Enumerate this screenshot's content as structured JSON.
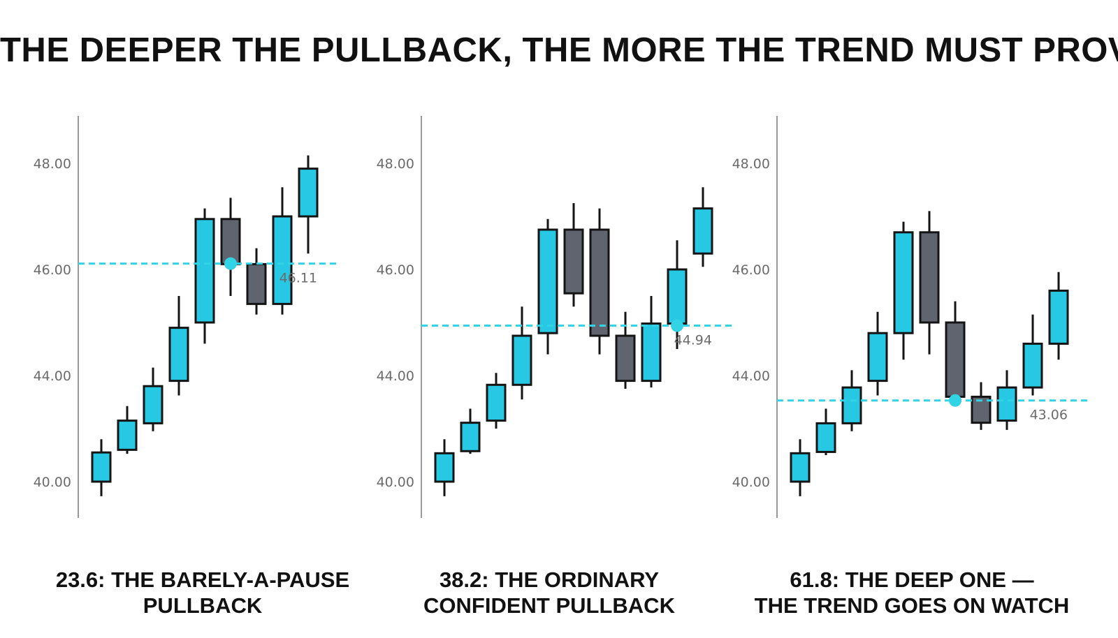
{
  "title": "THE DEEPER THE PULLBACK, THE MORE THE TREND MUST PROVE",
  "colors": {
    "up": "#27c8e4",
    "down": "#60646f",
    "outline": "#141414",
    "level": "#33d3e6",
    "axis": "#7a7a7a"
  },
  "chart_data": [
    {
      "type": "candlestick",
      "yticks": [
        "40.00",
        "44.00",
        "46.00",
        "48.00"
      ],
      "level_label": "46.11",
      "level": 46.11,
      "caption": [
        "23.6: THE BARELY-A-PAUSE",
        "PULLBACK"
      ],
      "candles": [
        {
          "o": 40.0,
          "c": 41.1,
          "h": 41.6,
          "l": 39.45
        },
        {
          "o": 41.2,
          "c": 42.3,
          "h": 42.85,
          "l": 41.05
        },
        {
          "o": 42.2,
          "c": 43.6,
          "h": 44.15,
          "l": 41.9
        },
        {
          "o": 43.8,
          "c": 44.9,
          "h": 45.5,
          "l": 43.25
        },
        {
          "o": 45.0,
          "c": 46.95,
          "h": 47.15,
          "l": 44.6
        },
        {
          "o": 46.95,
          "c": 46.1,
          "h": 47.35,
          "l": 45.5
        },
        {
          "o": 46.1,
          "c": 45.35,
          "h": 46.4,
          "l": 45.15
        },
        {
          "o": 45.35,
          "c": 47.0,
          "h": 47.55,
          "l": 45.15
        },
        {
          "o": 47.0,
          "c": 47.9,
          "h": 48.15,
          "l": 46.3
        }
      ]
    },
    {
      "type": "candlestick",
      "yticks": [
        "40.00",
        "44.00",
        "46.00",
        "48.00"
      ],
      "level_label": "44.94",
      "level": 44.94,
      "caption": [
        "38.2: THE ORDINARY",
        "CONFIDENT PULLBACK"
      ],
      "candles": [
        {
          "o": 40.0,
          "c": 41.07,
          "h": 41.6,
          "l": 39.45
        },
        {
          "o": 41.15,
          "c": 42.22,
          "h": 42.75,
          "l": 41.05
        },
        {
          "o": 42.3,
          "c": 43.65,
          "h": 44.05,
          "l": 42.0
        },
        {
          "o": 43.65,
          "c": 44.75,
          "h": 45.3,
          "l": 43.1
        },
        {
          "o": 44.8,
          "c": 46.75,
          "h": 46.95,
          "l": 44.4
        },
        {
          "o": 46.75,
          "c": 45.55,
          "h": 47.25,
          "l": 45.3
        },
        {
          "o": 46.75,
          "c": 44.75,
          "h": 47.15,
          "l": 44.4
        },
        {
          "o": 44.75,
          "c": 43.8,
          "h": 45.2,
          "l": 43.5
        },
        {
          "o": 43.8,
          "c": 44.98,
          "h": 45.5,
          "l": 43.55
        },
        {
          "o": 44.98,
          "c": 46.0,
          "h": 46.55,
          "l": 44.5
        },
        {
          "o": 46.3,
          "c": 47.15,
          "h": 47.55,
          "l": 46.05
        }
      ]
    },
    {
      "type": "candlestick",
      "yticks": [
        "40.00",
        "44.00",
        "46.00",
        "48.00"
      ],
      "level_label": "43.06",
      "level": 43.06,
      "caption": [
        "61.8: THE DEEP ONE —",
        "THE TREND GOES ON WATCH"
      ],
      "candles": [
        {
          "o": 40.0,
          "c": 41.07,
          "h": 41.6,
          "l": 39.45
        },
        {
          "o": 41.12,
          "c": 42.2,
          "h": 42.75,
          "l": 41.0
        },
        {
          "o": 42.2,
          "c": 43.55,
          "h": 44.1,
          "l": 41.9
        },
        {
          "o": 43.8,
          "c": 44.8,
          "h": 45.2,
          "l": 43.25
        },
        {
          "o": 44.8,
          "c": 46.7,
          "h": 46.9,
          "l": 44.3
        },
        {
          "o": 46.7,
          "c": 45.0,
          "h": 47.1,
          "l": 44.4
        },
        {
          "o": 45.0,
          "c": 43.2,
          "h": 45.4,
          "l": 42.9
        },
        {
          "o": 43.2,
          "c": 42.22,
          "h": 43.75,
          "l": 41.95
        },
        {
          "o": 42.3,
          "c": 43.55,
          "h": 44.1,
          "l": 41.95
        },
        {
          "o": 43.55,
          "c": 44.6,
          "h": 45.15,
          "l": 43.25
        },
        {
          "o": 44.6,
          "c": 45.6,
          "h": 45.95,
          "l": 44.3
        }
      ]
    }
  ]
}
